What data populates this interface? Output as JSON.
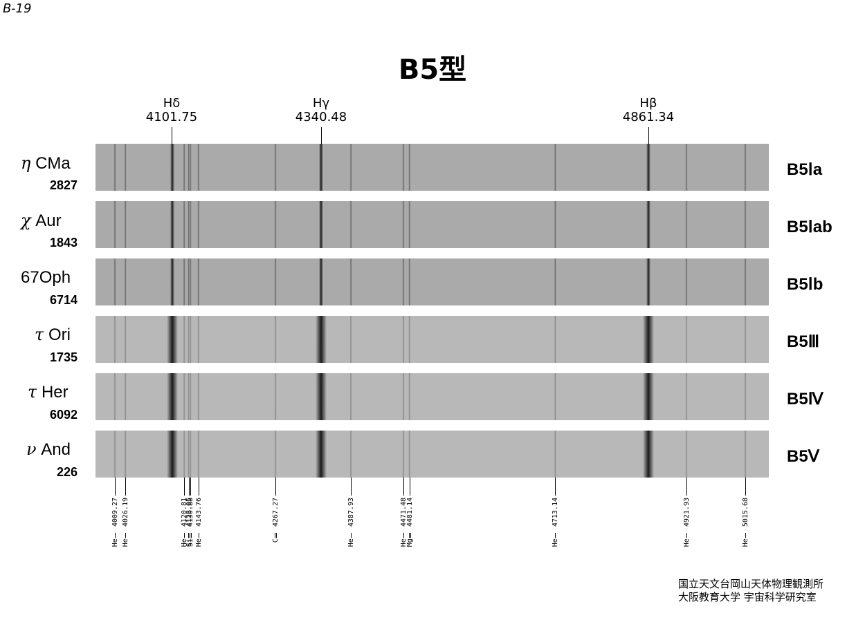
{
  "page_code": "B-19",
  "title": "B5型",
  "balmer_lines": [
    {
      "name": "Hδ",
      "wavelength": "4101.75"
    },
    {
      "name": "Hγ",
      "wavelength": "4340.48"
    },
    {
      "name": "Hβ",
      "wavelength": "4861.34"
    }
  ],
  "stars": [
    {
      "name_greek": "η",
      "name_rest": "CMa",
      "hd": "2827",
      "type": "B5Ⅰa"
    },
    {
      "name_greek": "χ",
      "name_rest": "Aur",
      "hd": "1843",
      "type": "B5Ⅰab"
    },
    {
      "name_greek": "",
      "name_rest": "67Oph",
      "hd": "6714",
      "type": "B5Ⅰb"
    },
    {
      "name_greek": "τ",
      "name_rest": "Ori",
      "hd": "1735",
      "type": "B5Ⅲ"
    },
    {
      "name_greek": "τ",
      "name_rest": "Her",
      "hd": "6092",
      "type": "B5Ⅳ"
    },
    {
      "name_greek": "ν",
      "name_rest": "And",
      "hd": "226",
      "type": "B5Ⅴ"
    }
  ],
  "line_ids": [
    {
      "element": "HeⅠ",
      "wavelength": "4009.27"
    },
    {
      "element": "HeⅠ",
      "wavelength": "4026.19"
    },
    {
      "element": "HeⅠ",
      "wavelength": "4120.81"
    },
    {
      "element": "SiⅡ",
      "wavelength": "4128.05"
    },
    {
      "element": "SiⅡ",
      "wavelength": "4130.88"
    },
    {
      "element": "HeⅠ",
      "wavelength": "4143.76"
    },
    {
      "element": "CⅡ",
      "wavelength": "4267.27"
    },
    {
      "element": "HeⅠ",
      "wavelength": "4387.93"
    },
    {
      "element": "HeⅠ",
      "wavelength": "4471.48"
    },
    {
      "element": "MgⅡ",
      "wavelength": "4481.14"
    },
    {
      "element": "HeⅠ",
      "wavelength": "4713.14"
    },
    {
      "element": "HeⅠ",
      "wavelength": "4921.93"
    },
    {
      "element": "HeⅠ",
      "wavelength": "5015.68"
    }
  ],
  "credits": [
    "国立天文台岡山天体物理観測所",
    "大阪教育大学 宇宙科学研究室"
  ],
  "colors": {
    "spectrum_bg": "#b8b8b8",
    "line_dark": "#111111"
  }
}
